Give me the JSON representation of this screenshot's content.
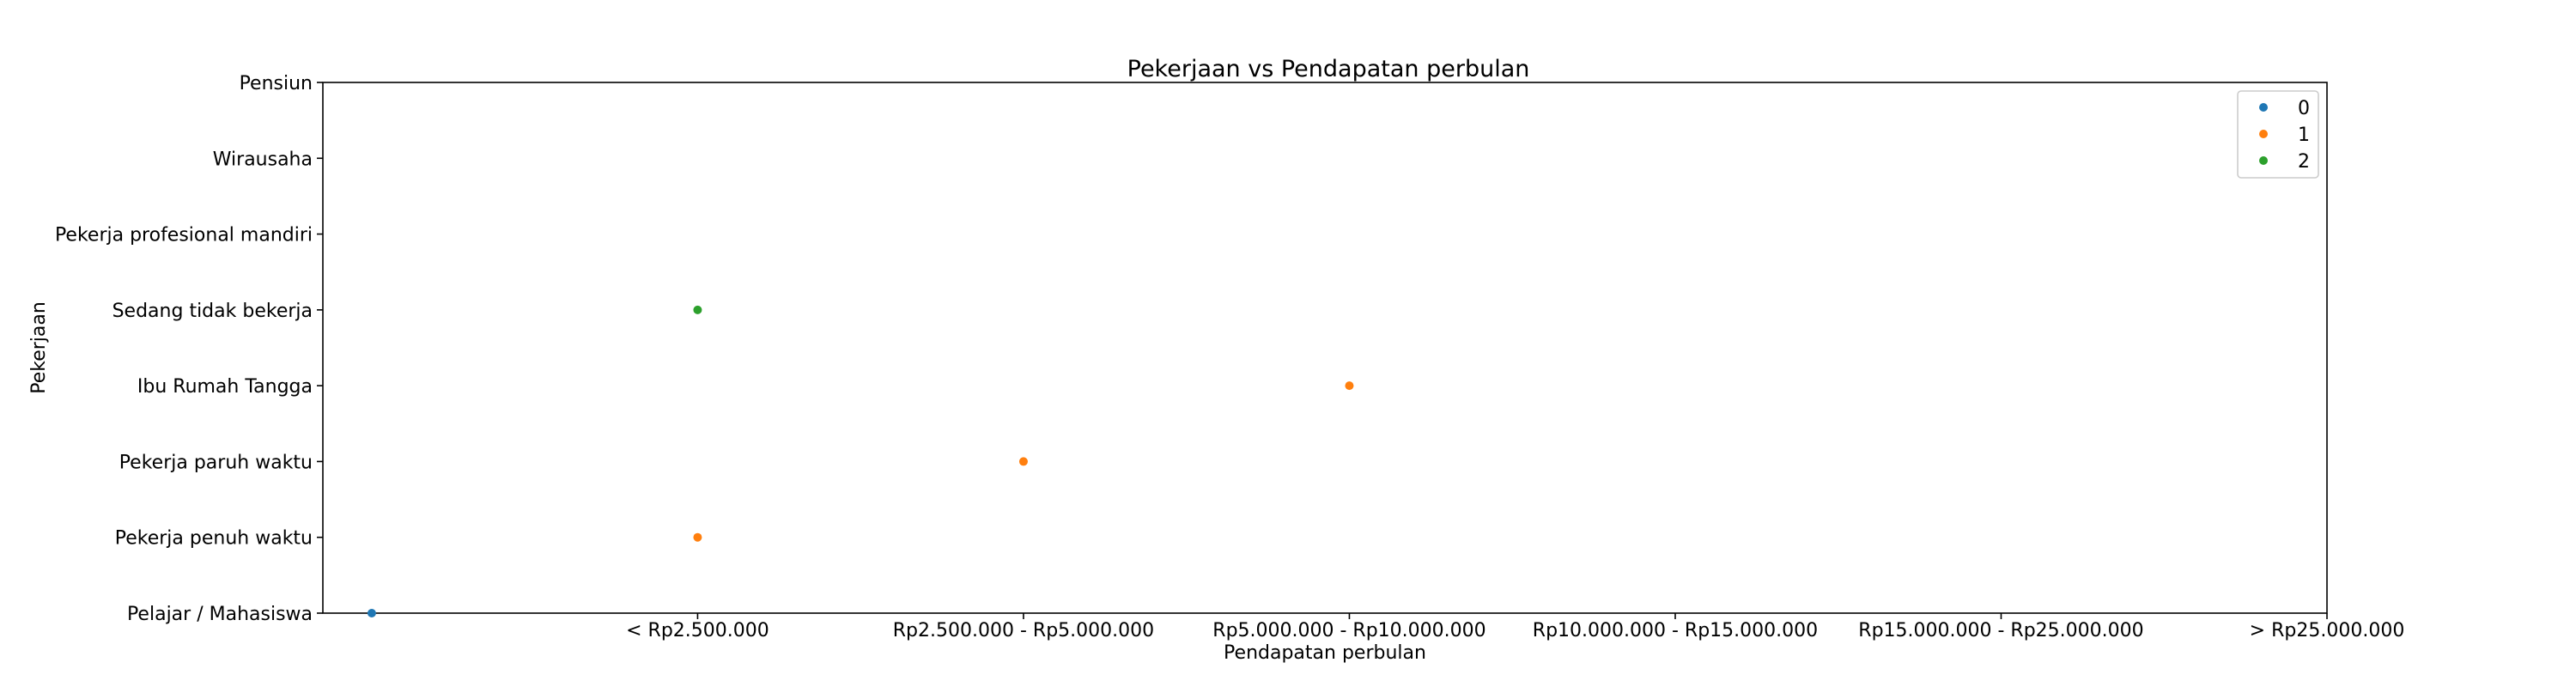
{
  "chart_data": {
    "type": "scatter",
    "title": "Pekerjaan vs Pendapatan perbulan",
    "xlabel": "Pendapatan perbulan",
    "ylabel": "Pekerjaan",
    "x_categories": [
      "< Rp2.500.000",
      "Rp2.500.000 - Rp5.000.000",
      "Rp5.000.000 - Rp10.000.000",
      "Rp10.000.000 - Rp15.000.000",
      "Rp15.000.000 - Rp25.000.000",
      "> Rp25.000.000"
    ],
    "y_categories": [
      "Pelajar / Mahasiswa",
      "Pekerja penuh waktu",
      "Pekerja paruh waktu",
      "Ibu Rumah Tangga",
      "Sedang tidak bekerja",
      "Pekerja profesional mandiri",
      "Wirausaha",
      "Pensiun"
    ],
    "xlim": [
      -1.15,
      5
    ],
    "ylim": [
      0,
      7
    ],
    "grid": false,
    "legend_position": "top-right",
    "series": [
      {
        "name": "0",
        "color": "#1f77b4",
        "points": [
          {
            "x": -1,
            "y": "Pelajar / Mahasiswa"
          }
        ]
      },
      {
        "name": "1",
        "color": "#ff7f0e",
        "points": [
          {
            "x": "< Rp2.500.000",
            "y": "Pekerja penuh waktu"
          },
          {
            "x": "Rp2.500.000 - Rp5.000.000",
            "y": "Pekerja paruh waktu"
          },
          {
            "x": "Rp5.000.000 - Rp10.000.000",
            "y": "Ibu Rumah Tangga"
          }
        ]
      },
      {
        "name": "2",
        "color": "#2ca02c",
        "points": [
          {
            "x": "< Rp2.500.000",
            "y": "Sedang tidak bekerja"
          }
        ]
      }
    ]
  }
}
